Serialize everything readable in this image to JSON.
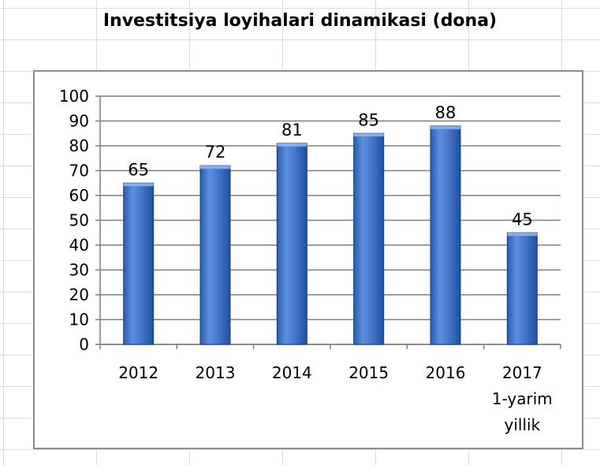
{
  "title": "Investitsiya loyihalari dinamikasi (dona)",
  "chart_data": {
    "type": "bar",
    "title": "Investitsiya loyihalari dinamikasi (dona)",
    "categories": [
      [
        "2012"
      ],
      [
        "2013"
      ],
      [
        "2014"
      ],
      [
        "2015"
      ],
      [
        "2016"
      ],
      [
        "2017",
        "1-yarim",
        "yillik"
      ]
    ],
    "values": [
      65,
      72,
      81,
      85,
      88,
      45
    ],
    "data_labels": [
      "65",
      "72",
      "81",
      "85",
      "88",
      "45"
    ],
    "y_ticks": [
      0,
      10,
      20,
      30,
      40,
      50,
      60,
      70,
      80,
      90,
      100
    ],
    "ylim": [
      0,
      100
    ],
    "xlabel": "",
    "ylabel": "",
    "grid": true,
    "legend": "none",
    "colors": {
      "bar_light": "#6e9be0",
      "bar_mid": "#3b6fc4",
      "bar_dark": "#1f4f9e",
      "gridline": "#7f7f7f",
      "axis": "#7f7f7f"
    }
  }
}
